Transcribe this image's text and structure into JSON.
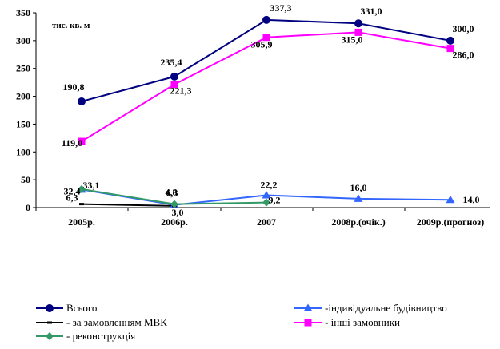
{
  "chart_data": {
    "type": "line",
    "unit_label": "тис. кв. м",
    "categories": [
      "2005р.",
      "2006р.",
      "2007",
      "2008р.(очік.)",
      "2009р.(прогноз)"
    ],
    "ylim": [
      0,
      350
    ],
    "yticks": [
      "0",
      "50",
      "100",
      "150",
      "200",
      "250",
      "300",
      "350"
    ],
    "grid": false,
    "legend_position": "bottom",
    "series": [
      {
        "name": "Всього",
        "color": "#000080",
        "marker": "circle",
        "values": [
          190.8,
          235.4,
          337.3,
          331.0,
          300.0
        ],
        "labels": [
          "190,8",
          "235,4",
          "337,3",
          "331,0",
          "300,0"
        ]
      },
      {
        "name": "- інші замовники",
        "color": "#FF00FF",
        "marker": "square",
        "values": [
          119.0,
          221.3,
          305.9,
          315.0,
          286.0
        ],
        "labels": [
          "119,0",
          "221,3",
          "305,9",
          "315,0",
          "286,0"
        ]
      },
      {
        "name": "-індивідуальне будівництво",
        "color": "#3366FF",
        "marker": "triangle",
        "values": [
          32.4,
          4.8,
          22.2,
          16.0,
          14.0
        ],
        "labels": [
          "32,4",
          "4,8",
          "22,2",
          "16,0",
          "14,0"
        ]
      },
      {
        "name": "- за замовленням МВК",
        "color": "#000000",
        "marker": "dash",
        "values": [
          6.3,
          3.0,
          null,
          null,
          null
        ],
        "labels": [
          "6,3",
          "3,0",
          "",
          "",
          ""
        ]
      },
      {
        "name": "- реконструкція",
        "color": "#339966",
        "marker": "diamond",
        "values": [
          33.1,
          6.3,
          9.2,
          null,
          null
        ],
        "labels": [
          "33,1",
          "6,3",
          "9,2",
          "",
          ""
        ]
      }
    ]
  }
}
